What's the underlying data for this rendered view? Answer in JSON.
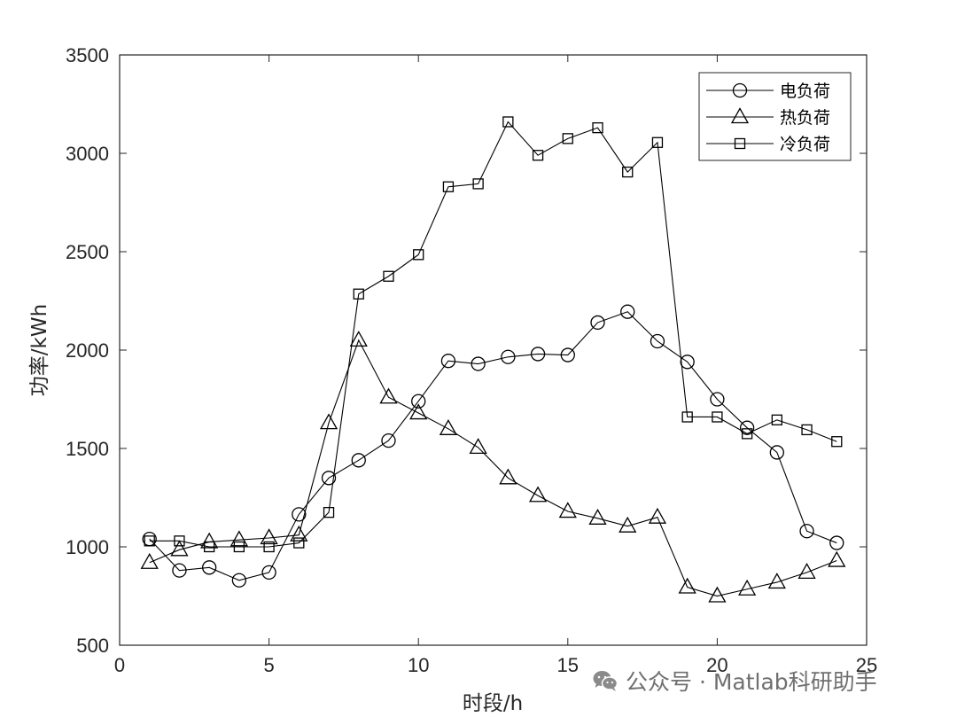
{
  "chart_data": {
    "type": "line",
    "xlabel": "时段/h",
    "ylabel": "功率/kWh",
    "xlim": [
      0,
      25
    ],
    "ylim": [
      500,
      3500
    ],
    "xticks": [
      0,
      5,
      10,
      15,
      20,
      25
    ],
    "yticks": [
      500,
      1000,
      1500,
      2000,
      2500,
      3000,
      3500
    ],
    "x": [
      1,
      2,
      3,
      4,
      5,
      6,
      7,
      8,
      9,
      10,
      11,
      12,
      13,
      14,
      15,
      16,
      17,
      18,
      19,
      20,
      21,
      22,
      23,
      24
    ],
    "legend_position": "top-right",
    "grid": false,
    "series": [
      {
        "name": "电负荷",
        "marker": "circle",
        "values": [
          1040,
          880,
          895,
          830,
          870,
          1165,
          1350,
          1440,
          1540,
          1740,
          1945,
          1930,
          1965,
          1980,
          1975,
          2140,
          2195,
          2045,
          1940,
          1750,
          1605,
          1480,
          1080,
          1020
        ]
      },
      {
        "name": "热负荷",
        "marker": "triangle",
        "values": [
          920,
          985,
          1025,
          1035,
          1045,
          1060,
          1630,
          2050,
          1760,
          1680,
          1600,
          1505,
          1350,
          1260,
          1180,
          1145,
          1105,
          1150,
          795,
          750,
          785,
          820,
          870,
          930
        ]
      },
      {
        "name": "冷负荷",
        "marker": "square",
        "values": [
          1030,
          1030,
          1000,
          1000,
          1000,
          1020,
          1175,
          2285,
          2375,
          2485,
          2830,
          2845,
          3160,
          2990,
          3075,
          3130,
          2905,
          3055,
          1660,
          1660,
          1575,
          1645,
          1595,
          1535
        ]
      }
    ]
  },
  "watermark": {
    "icon": "wechat-icon",
    "text": "公众号 · Matlab科研助手"
  }
}
